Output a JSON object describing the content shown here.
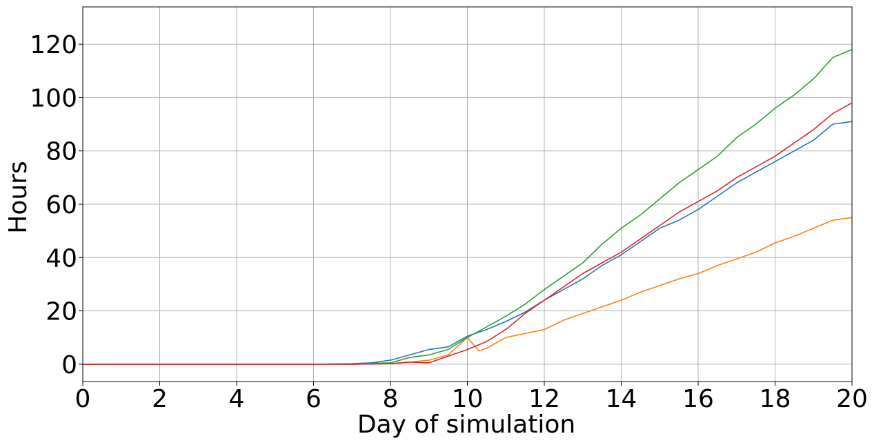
{
  "chart_data": {
    "type": "line",
    "title": "",
    "xlabel": "Day of simulation",
    "ylabel": "Hours",
    "xlim": [
      0,
      20
    ],
    "ylim": [
      -6.5,
      134
    ],
    "xticks": [
      0,
      2,
      4,
      6,
      8,
      10,
      12,
      14,
      16,
      18,
      20
    ],
    "yticks": [
      0,
      20,
      40,
      60,
      80,
      100,
      120
    ],
    "grid": true,
    "legend": "none",
    "series": [
      {
        "color": "#1f77b4",
        "x": [
          0,
          6,
          7,
          7.5,
          8,
          8.5,
          9,
          9.5,
          10,
          10.5,
          11,
          11.5,
          12,
          12.5,
          13,
          13.5,
          14,
          14.5,
          15,
          15.5,
          16,
          16.5,
          17,
          17.5,
          18,
          18.5,
          19,
          19.5,
          20
        ],
        "values": [
          0,
          0,
          0.2,
          0.5,
          1.5,
          3.5,
          5.5,
          6.5,
          10.5,
          13,
          16,
          19.5,
          24,
          28,
          32,
          37,
          41,
          46,
          51,
          54,
          58,
          63,
          68,
          72,
          76,
          80,
          84,
          90,
          91
        ]
      },
      {
        "color": "#ff7f0e",
        "x": [
          0,
          6,
          7,
          8,
          8.5,
          9,
          9.5,
          10,
          10.3,
          10.5,
          11,
          11.5,
          12,
          12.5,
          13,
          13.5,
          14,
          14.5,
          15,
          15.5,
          16,
          16.5,
          17,
          17.5,
          18,
          18.5,
          19,
          19.5,
          20
        ],
        "values": [
          0,
          0,
          0,
          0.2,
          0.8,
          1.5,
          3.5,
          10,
          5,
          6,
          10,
          11.5,
          13,
          16.5,
          19,
          21.5,
          24,
          27,
          29.5,
          32,
          34,
          37,
          39.5,
          42,
          45.5,
          48,
          51,
          54,
          55
        ]
      },
      {
        "color": "#2ca02c",
        "x": [
          0,
          6,
          7,
          8,
          8.5,
          9,
          9.5,
          10,
          10.5,
          11,
          11.5,
          12,
          12.5,
          13,
          13.5,
          14,
          14.5,
          15,
          15.5,
          16,
          16.5,
          17,
          17.5,
          18,
          18.5,
          19,
          19.5,
          20
        ],
        "values": [
          0,
          0,
          0.1,
          0.5,
          2.5,
          3.5,
          5.5,
          10,
          14,
          18,
          22.5,
          28,
          33,
          38,
          45,
          51,
          56,
          62,
          68,
          73,
          78,
          85,
          90,
          96,
          101,
          107,
          115,
          118
        ]
      },
      {
        "color": "#d62728",
        "x": [
          0,
          6,
          7,
          8,
          8.5,
          9,
          9.5,
          10,
          10.5,
          11,
          11.5,
          12,
          12.5,
          13,
          13.5,
          14,
          14.5,
          15,
          15.5,
          16,
          16.5,
          17,
          17.5,
          18,
          18.5,
          19,
          19.5,
          20
        ],
        "values": [
          0,
          0,
          0,
          0.2,
          0.8,
          0.5,
          3,
          5.5,
          8.5,
          13,
          19,
          24,
          29,
          34,
          38,
          42,
          47,
          52,
          57,
          61,
          65,
          70,
          74,
          78,
          83,
          88,
          94,
          98
        ]
      }
    ]
  }
}
